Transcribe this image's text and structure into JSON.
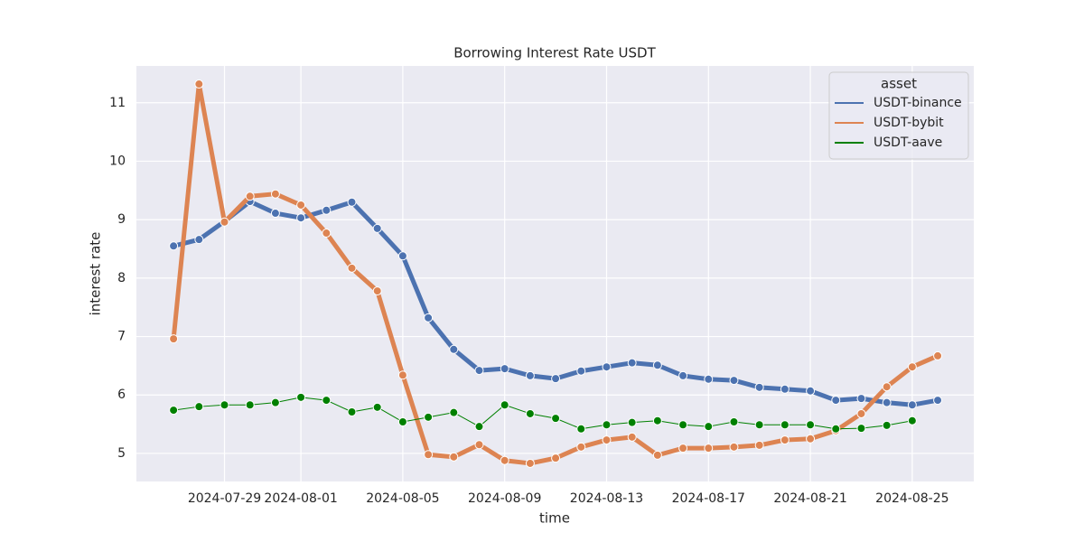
{
  "chart_data": {
    "type": "line",
    "title": "Borrowing Interest Rate USDT",
    "xlabel": "time",
    "ylabel": "interest rate",
    "x": [
      "2024-07-27",
      "2024-07-28",
      "2024-07-29",
      "2024-07-30",
      "2024-07-31",
      "2024-08-01",
      "2024-08-02",
      "2024-08-03",
      "2024-08-04",
      "2024-08-05",
      "2024-08-06",
      "2024-08-07",
      "2024-08-08",
      "2024-08-09",
      "2024-08-10",
      "2024-08-11",
      "2024-08-12",
      "2024-08-13",
      "2024-08-14",
      "2024-08-15",
      "2024-08-16",
      "2024-08-17",
      "2024-08-18",
      "2024-08-19",
      "2024-08-20",
      "2024-08-21",
      "2024-08-22",
      "2024-08-23",
      "2024-08-24",
      "2024-08-25",
      "2024-08-26"
    ],
    "series": [
      {
        "name": "USDT-binance",
        "color": "#4c72b0",
        "linewidth": 5,
        "values": [
          8.55,
          8.66,
          8.97,
          9.31,
          9.11,
          9.03,
          9.16,
          9.3,
          8.85,
          8.38,
          7.32,
          6.78,
          6.42,
          6.45,
          6.33,
          6.28,
          6.41,
          6.48,
          6.55,
          6.51,
          6.33,
          6.27,
          6.25,
          6.13,
          6.1,
          6.07,
          5.91,
          5.94,
          5.87,
          5.83,
          5.91
        ]
      },
      {
        "name": "USDT-bybit",
        "color": "#dd8452",
        "linewidth": 5,
        "values": [
          6.96,
          11.32,
          8.96,
          9.4,
          9.44,
          9.25,
          8.77,
          8.17,
          7.78,
          6.34,
          4.98,
          4.94,
          5.15,
          4.88,
          4.83,
          4.92,
          5.11,
          5.23,
          5.28,
          4.97,
          5.09,
          5.09,
          5.11,
          5.14,
          5.23,
          5.25,
          5.39,
          5.68,
          6.14,
          6.48,
          6.67
        ]
      },
      {
        "name": "USDT-aave",
        "color": "#008000",
        "linewidth": 1,
        "values": [
          5.74,
          5.8,
          5.83,
          5.83,
          5.87,
          5.96,
          5.91,
          5.71,
          5.79,
          5.54,
          5.62,
          5.7,
          5.46,
          5.83,
          5.68,
          5.6,
          5.42,
          5.49,
          5.53,
          5.56,
          5.49,
          5.46,
          5.54,
          5.49,
          5.49,
          5.49,
          5.42,
          5.43,
          5.48,
          5.56,
          null
        ]
      }
    ],
    "legend_title": "asset",
    "legend": "upper right",
    "grid": true,
    "xlim": [
      "2024-07-25T13:00",
      "2024-08-27T10:00"
    ],
    "xticks": [
      "2024-07-29",
      "2024-08-01",
      "2024-08-05",
      "2024-08-09",
      "2024-08-13",
      "2024-08-17",
      "2024-08-21",
      "2024-08-25"
    ],
    "ylim": [
      4.52,
      11.63
    ],
    "yticks": [
      5,
      6,
      7,
      8,
      9,
      10,
      11
    ]
  }
}
